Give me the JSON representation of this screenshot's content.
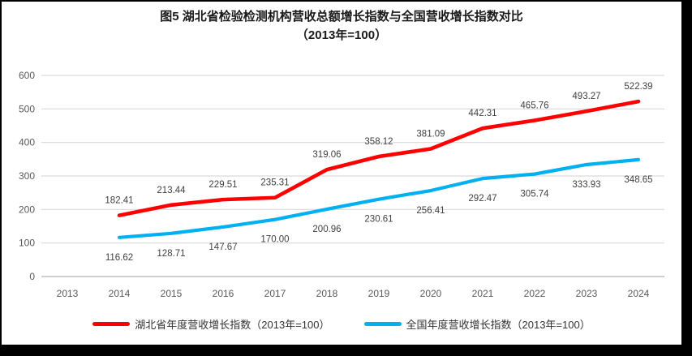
{
  "title": {
    "line1": "图5 湖北省检验检测机构营收总额增长指数与全国营收增长指数对比",
    "line2": "（2013年=100）"
  },
  "chart_data": {
    "type": "line",
    "categories": [
      "2013",
      "2014",
      "2015",
      "2016",
      "2017",
      "2018",
      "2019",
      "2020",
      "2021",
      "2022",
      "2023",
      "2024"
    ],
    "series": [
      {
        "name": "湖北省年度营收增长指数（2013年=100）",
        "color": "#FF0000",
        "label_position": "above",
        "values": [
          null,
          182.41,
          213.44,
          229.51,
          235.31,
          319.06,
          358.12,
          381.09,
          442.31,
          465.76,
          493.27,
          522.39
        ],
        "labels": [
          "",
          "182.41",
          "213.44",
          "229.51",
          "235.31",
          "319.06",
          "358.12",
          "381.09",
          "442.31",
          "465.76",
          "493.27",
          "522.39"
        ]
      },
      {
        "name": "全国年度营收增长指数（2013年=100）",
        "color": "#00B0F0",
        "label_position": "below",
        "values": [
          null,
          116.62,
          128.71,
          147.67,
          170.0,
          200.96,
          230.61,
          256.41,
          292.47,
          305.74,
          333.93,
          348.65
        ],
        "labels": [
          "",
          "116.62",
          "128.71",
          "147.67",
          "170.00",
          "200.96",
          "230.61",
          "256.41",
          "292.47",
          "305.74",
          "333.93",
          "348.65"
        ]
      }
    ],
    "ylim": [
      0,
      600
    ],
    "yticks": [
      0,
      100,
      200,
      300,
      400,
      500,
      600
    ],
    "grid": true,
    "legend_position": "bottom",
    "xlabel": "",
    "ylabel": ""
  },
  "colors": {
    "frame_border": "#000000",
    "background": "#ffffff",
    "gridline": "#d9d9d9",
    "axis_line": "#bfbfbf",
    "tick_label": "#595959",
    "data_label": "#404040",
    "series_hubei": "#FF0000",
    "series_national": "#00B0F0"
  }
}
